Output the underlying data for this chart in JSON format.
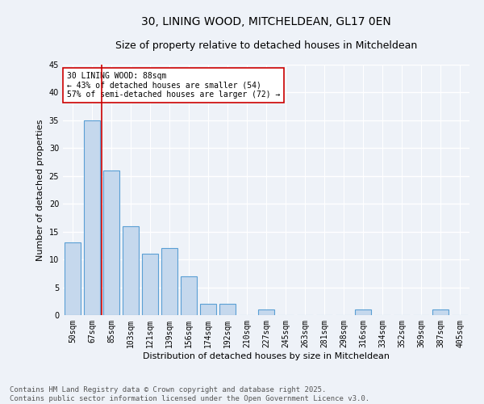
{
  "title1": "30, LINING WOOD, MITCHELDEAN, GL17 0EN",
  "title2": "Size of property relative to detached houses in Mitcheldean",
  "xlabel": "Distribution of detached houses by size in Mitcheldean",
  "ylabel": "Number of detached properties",
  "categories": [
    "50sqm",
    "67sqm",
    "85sqm",
    "103sqm",
    "121sqm",
    "139sqm",
    "156sqm",
    "174sqm",
    "192sqm",
    "210sqm",
    "227sqm",
    "245sqm",
    "263sqm",
    "281sqm",
    "298sqm",
    "316sqm",
    "334sqm",
    "352sqm",
    "369sqm",
    "387sqm",
    "405sqm"
  ],
  "values": [
    13,
    35,
    26,
    16,
    11,
    12,
    7,
    2,
    2,
    0,
    1,
    0,
    0,
    0,
    0,
    1,
    0,
    0,
    0,
    1,
    0
  ],
  "bar_color": "#c5d8ed",
  "bar_edge_color": "#5a9fd4",
  "ylim": [
    0,
    45
  ],
  "yticks": [
    0,
    5,
    10,
    15,
    20,
    25,
    30,
    35,
    40,
    45
  ],
  "vline_color": "#cc0000",
  "vline_index": 2,
  "annotation_text": "30 LINING WOOD: 88sqm\n← 43% of detached houses are smaller (54)\n57% of semi-detached houses are larger (72) →",
  "annotation_box_color": "#ffffff",
  "annotation_box_edge_color": "#cc0000",
  "footer_text": "Contains HM Land Registry data © Crown copyright and database right 2025.\nContains public sector information licensed under the Open Government Licence v3.0.",
  "bg_color": "#eef2f8",
  "plot_bg_color": "#eef2f8",
  "grid_color": "#ffffff",
  "title1_fontsize": 10,
  "title2_fontsize": 9,
  "axis_label_fontsize": 8,
  "tick_fontsize": 7,
  "annotation_fontsize": 7,
  "footer_fontsize": 6.5
}
